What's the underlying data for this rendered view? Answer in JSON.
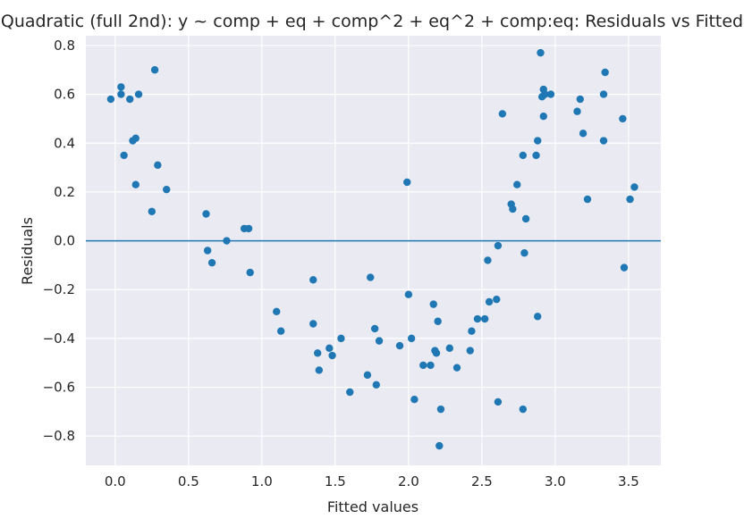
{
  "colors": {
    "plot_background": "#eaeaf2",
    "grid": "#ffffff",
    "points": "#1f77b4",
    "zero_line": "#1f77b4"
  },
  "chart_data": {
    "type": "scatter",
    "title": "Quadratic (full 2nd): y ~ comp + eq + comp^2 + eq^2 + comp:eq: Residuals vs Fitted",
    "xlabel": "Fitted values",
    "ylabel": "Residuals",
    "xlim": [
      -0.2,
      3.72
    ],
    "ylim": [
      -0.92,
      0.84
    ],
    "xticks": [
      0.0,
      0.5,
      1.0,
      1.5,
      2.0,
      2.5,
      3.0,
      3.5
    ],
    "xtick_labels": [
      "0.0",
      "0.5",
      "1.0",
      "1.5",
      "2.0",
      "2.5",
      "3.0",
      "3.5"
    ],
    "yticks": [
      -0.8,
      -0.6,
      -0.4,
      -0.2,
      0.0,
      0.2,
      0.4,
      0.6,
      0.8
    ],
    "ytick_labels": [
      "−0.8",
      "−0.6",
      "−0.4",
      "−0.2",
      "0.0",
      "0.2",
      "0.4",
      "0.6",
      "0.8"
    ],
    "grid": true,
    "reference_line": {
      "y": 0.0
    },
    "series": [
      {
        "points": [
          [
            -0.03,
            0.58
          ],
          [
            0.04,
            0.63
          ],
          [
            0.04,
            0.6
          ],
          [
            0.06,
            0.35
          ],
          [
            0.1,
            0.58
          ],
          [
            0.12,
            0.41
          ],
          [
            0.14,
            0.42
          ],
          [
            0.14,
            0.23
          ],
          [
            0.16,
            0.6
          ],
          [
            0.25,
            0.12
          ],
          [
            0.27,
            0.7
          ],
          [
            0.29,
            0.31
          ],
          [
            0.35,
            0.21
          ],
          [
            0.62,
            0.11
          ],
          [
            0.63,
            -0.04
          ],
          [
            0.66,
            -0.09
          ],
          [
            0.76,
            0.0
          ],
          [
            0.88,
            0.05
          ],
          [
            0.91,
            0.05
          ],
          [
            0.92,
            -0.13
          ],
          [
            1.1,
            -0.29
          ],
          [
            1.13,
            -0.37
          ],
          [
            1.35,
            -0.16
          ],
          [
            1.35,
            -0.34
          ],
          [
            1.38,
            -0.46
          ],
          [
            1.39,
            -0.53
          ],
          [
            1.46,
            -0.44
          ],
          [
            1.48,
            -0.47
          ],
          [
            1.54,
            -0.4
          ],
          [
            1.6,
            -0.62
          ],
          [
            1.72,
            -0.55
          ],
          [
            1.74,
            -0.15
          ],
          [
            1.77,
            -0.36
          ],
          [
            1.78,
            -0.59
          ],
          [
            1.8,
            -0.41
          ],
          [
            1.94,
            -0.43
          ],
          [
            1.99,
            0.24
          ],
          [
            2.0,
            -0.22
          ],
          [
            2.02,
            -0.4
          ],
          [
            2.04,
            -0.65
          ],
          [
            2.1,
            -0.51
          ],
          [
            2.15,
            -0.51
          ],
          [
            2.17,
            -0.26
          ],
          [
            2.18,
            -0.45
          ],
          [
            2.19,
            -0.46
          ],
          [
            2.2,
            -0.33
          ],
          [
            2.21,
            -0.84
          ],
          [
            2.22,
            -0.69
          ],
          [
            2.28,
            -0.44
          ],
          [
            2.33,
            -0.52
          ],
          [
            2.42,
            -0.45
          ],
          [
            2.43,
            -0.37
          ],
          [
            2.47,
            -0.32
          ],
          [
            2.52,
            -0.32
          ],
          [
            2.54,
            -0.08
          ],
          [
            2.55,
            -0.25
          ],
          [
            2.6,
            -0.24
          ],
          [
            2.61,
            -0.02
          ],
          [
            2.61,
            -0.66
          ],
          [
            2.64,
            0.52
          ],
          [
            2.7,
            0.15
          ],
          [
            2.71,
            0.13
          ],
          [
            2.74,
            0.23
          ],
          [
            2.78,
            0.35
          ],
          [
            2.78,
            -0.69
          ],
          [
            2.79,
            -0.05
          ],
          [
            2.8,
            0.09
          ],
          [
            2.87,
            0.35
          ],
          [
            2.88,
            -0.31
          ],
          [
            2.88,
            0.41
          ],
          [
            2.9,
            0.77
          ],
          [
            2.91,
            0.59
          ],
          [
            2.92,
            0.62
          ],
          [
            2.92,
            0.51
          ],
          [
            2.93,
            0.6
          ],
          [
            2.97,
            0.6
          ],
          [
            3.15,
            0.53
          ],
          [
            3.17,
            0.58
          ],
          [
            3.19,
            0.44
          ],
          [
            3.22,
            0.17
          ],
          [
            3.33,
            0.6
          ],
          [
            3.33,
            0.41
          ],
          [
            3.34,
            0.69
          ],
          [
            3.46,
            0.5
          ],
          [
            3.47,
            -0.11
          ],
          [
            3.51,
            0.17
          ],
          [
            3.54,
            0.22
          ]
        ]
      }
    ]
  }
}
